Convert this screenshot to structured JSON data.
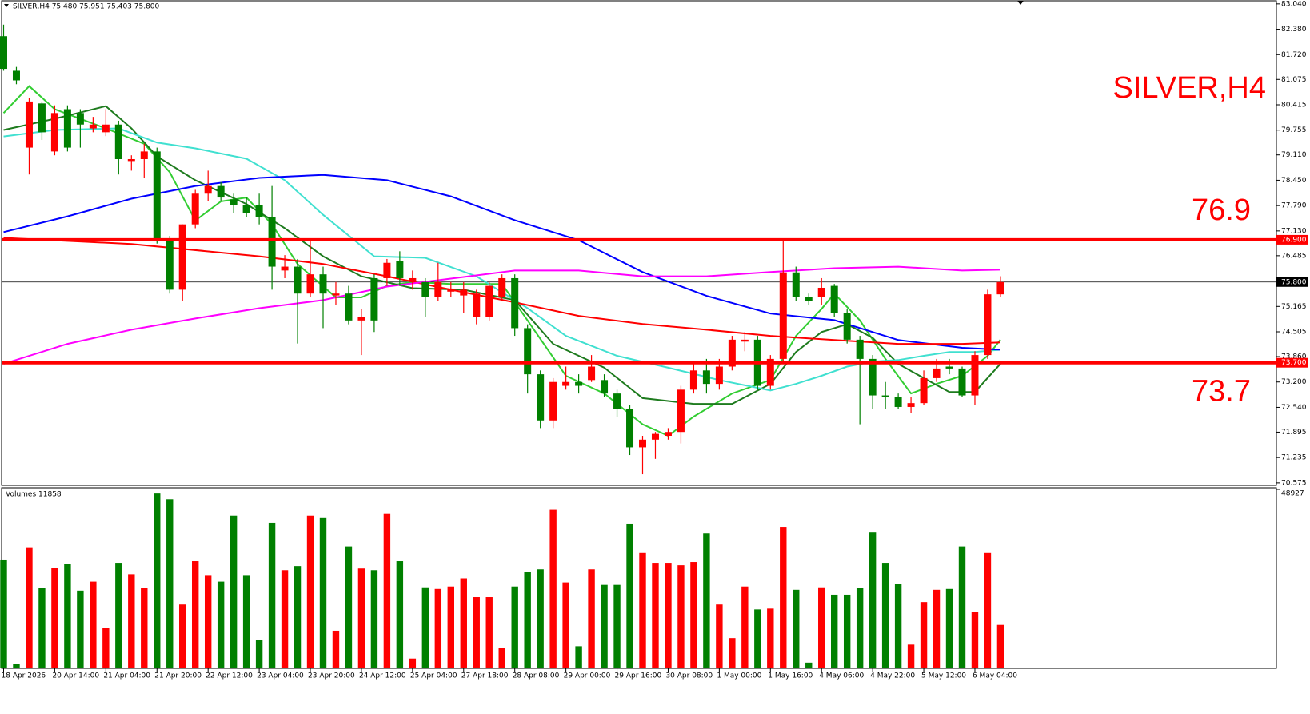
{
  "chart_data": {
    "type": "candlestick",
    "header": "SILVER,H4  75.480 75.951 75.403 75.800",
    "title": "SILVER,H4",
    "volume_label": "Volumes 11858",
    "up_color": "#ff0000",
    "down_color": "#008000",
    "ylim": [
      70.51,
      83.12
    ],
    "yticks": [
      {
        "value": 83.04,
        "label": "83.040"
      },
      {
        "value": 82.38,
        "label": "82.380"
      },
      {
        "value": 81.72,
        "label": "81.720"
      },
      {
        "value": 81.075,
        "label": "81.075"
      },
      {
        "value": 80.415,
        "label": "80.415"
      },
      {
        "value": 79.755,
        "label": "79.755"
      },
      {
        "value": 79.11,
        "label": "79.110"
      },
      {
        "value": 78.45,
        "label": "78.450"
      },
      {
        "value": 77.79,
        "label": "77.790"
      },
      {
        "value": 77.13,
        "label": "77.130"
      },
      {
        "value": 76.485,
        "label": "76.485"
      },
      {
        "value": 75.165,
        "label": "75.165"
      },
      {
        "value": 74.505,
        "label": "74.505"
      },
      {
        "value": 73.86,
        "label": "73.860"
      },
      {
        "value": 73.2,
        "label": "73.200"
      },
      {
        "value": 72.54,
        "label": "72.540"
      },
      {
        "value": 71.895,
        "label": "71.895"
      },
      {
        "value": 71.235,
        "label": "71.235"
      },
      {
        "value": 70.575,
        "label": "70.575"
      }
    ],
    "levels": [
      {
        "value": 76.9,
        "label": "76.900"
      },
      {
        "value": 73.7,
        "label": "73.700"
      }
    ],
    "level_color": "#ff0000",
    "current_price": {
      "value": 75.8,
      "label": "75.800"
    },
    "volume_ylim": [
      0,
      48927
    ],
    "volume_ticks": [
      48927
    ],
    "categories": [
      "18 Apr 2026",
      null,
      null,
      null,
      "20 Apr 14:00",
      null,
      null,
      null,
      "21 Apr 04:00",
      null,
      null,
      null,
      "21 Apr 20:00",
      null,
      null,
      null,
      "22 Apr 12:00",
      null,
      null,
      null,
      "23 Apr 04:00",
      null,
      null,
      null,
      "23 Apr 20:00",
      null,
      null,
      null,
      "24 Apr 12:00",
      null,
      null,
      null,
      "25 Apr 04:00",
      null,
      null,
      null,
      "27 Apr 18:00",
      null,
      null,
      null,
      "28 Apr 08:00",
      null,
      null,
      null,
      "29 Apr 00:00",
      null,
      null,
      null,
      "29 Apr 16:00",
      null,
      null,
      null,
      "30 Apr 08:00",
      null,
      null,
      null,
      "1 May 00:00",
      null,
      null,
      null,
      "1 May 16:00",
      null,
      null,
      null,
      "4 May 06:00",
      null,
      null,
      null,
      "4 May 22:00",
      null,
      null,
      null,
      "5 May 12:00",
      null,
      null,
      null,
      "6 May 04:00",
      null,
      null
    ],
    "open": [
      82.2,
      81.3,
      79.3,
      80.45,
      79.2,
      80.3,
      80.2,
      79.8,
      79.7,
      79.9,
      78.95,
      79.0,
      79.2,
      76.9,
      75.6,
      77.3,
      78.1,
      78.3,
      77.95,
      77.8,
      77.8,
      77.5,
      76.1,
      76.2,
      75.5,
      76.0,
      75.45,
      75.5,
      74.8,
      75.9,
      75.9,
      76.35,
      75.8,
      75.8,
      75.4,
      75.55,
      75.45,
      74.9,
      74.9,
      75.4,
      75.9,
      74.6,
      73.4,
      72.2,
      73.1,
      73.2,
      73.25,
      73.25,
      72.9,
      72.5,
      71.5,
      71.7,
      71.8,
      71.9,
      73.0,
      73.5,
      73.15,
      73.6,
      74.25,
      74.3,
      73.1,
      73.8,
      76.05,
      75.4,
      75.4,
      75.7,
      75.0,
      74.3,
      73.8,
      72.85,
      72.8,
      72.55,
      72.65,
      73.3,
      73.6,
      73.55,
      72.85,
      73.9,
      75.48
    ],
    "high": [
      82.5,
      81.4,
      80.6,
      80.5,
      80.4,
      80.4,
      80.3,
      80.1,
      80.3,
      80.0,
      79.1,
      79.4,
      79.3,
      77.0,
      77.3,
      78.2,
      78.7,
      78.4,
      78.1,
      78.0,
      78.1,
      78.3,
      76.5,
      76.4,
      76.9,
      76.2,
      75.8,
      75.7,
      75.1,
      76.0,
      76.4,
      76.6,
      76.1,
      75.9,
      76.3,
      75.8,
      75.8,
      75.6,
      75.8,
      76.0,
      76.0,
      74.7,
      73.5,
      73.3,
      73.6,
      73.4,
      73.9,
      73.4,
      73.0,
      72.6,
      71.8,
      71.9,
      72.0,
      73.1,
      73.7,
      73.8,
      73.8,
      74.4,
      74.5,
      74.4,
      73.9,
      76.9,
      76.2,
      75.5,
      75.9,
      75.75,
      75.1,
      74.4,
      73.9,
      73.2,
      72.9,
      72.8,
      73.5,
      73.8,
      73.8,
      73.6,
      74.0,
      75.6,
      75.951
    ],
    "low": [
      81.3,
      80.95,
      78.6,
      79.5,
      79.1,
      79.2,
      79.3,
      79.7,
      79.6,
      78.6,
      78.7,
      78.5,
      76.8,
      75.5,
      75.3,
      77.2,
      77.9,
      77.9,
      77.6,
      77.5,
      77.3,
      75.6,
      75.9,
      74.2,
      75.4,
      74.6,
      75.2,
      74.7,
      73.9,
      74.5,
      75.7,
      75.7,
      75.6,
      74.9,
      75.3,
      75.4,
      75.0,
      74.7,
      74.8,
      75.3,
      74.4,
      72.9,
      72.0,
      72.0,
      73.0,
      72.9,
      73.2,
      72.8,
      72.3,
      71.3,
      70.8,
      71.2,
      71.7,
      71.6,
      72.9,
      72.9,
      73.0,
      73.5,
      74.0,
      73.0,
      73.0,
      73.7,
      75.3,
      75.2,
      75.2,
      74.9,
      74.2,
      72.1,
      72.5,
      72.5,
      72.5,
      72.4,
      72.6,
      73.2,
      73.4,
      72.8,
      72.6,
      73.8,
      75.403
    ],
    "close": [
      81.35,
      81.05,
      80.5,
      79.7,
      80.2,
      79.3,
      79.9,
      79.9,
      79.9,
      79.0,
      79.0,
      79.2,
      76.9,
      75.6,
      77.3,
      78.1,
      78.3,
      78.0,
      77.8,
      77.6,
      77.5,
      76.2,
      76.2,
      75.5,
      76.0,
      75.5,
      75.5,
      74.8,
      74.9,
      74.8,
      76.3,
      75.9,
      75.9,
      75.4,
      75.8,
      75.6,
      75.6,
      75.5,
      75.7,
      75.9,
      74.6,
      73.4,
      72.2,
      73.2,
      73.2,
      73.1,
      73.6,
      72.9,
      72.5,
      71.5,
      71.7,
      71.85,
      71.9,
      73.0,
      73.5,
      73.15,
      73.6,
      74.3,
      74.3,
      73.1,
      73.8,
      76.05,
      75.4,
      75.3,
      75.65,
      75.0,
      74.3,
      73.8,
      72.85,
      72.8,
      72.55,
      72.65,
      73.3,
      73.55,
      73.55,
      72.85,
      73.9,
      75.48,
      75.8
    ],
    "volume": [
      29712,
      1117,
      33063,
      21893,
      27478,
      28595,
      21223,
      23680,
      10947,
      28819,
      25691,
      21893,
      47808,
      46244,
      17425,
      29265,
      25468,
      23680,
      41776,
      25468,
      7819,
      39765,
      26808,
      27925,
      41776,
      41106,
      10276,
      33287,
      27255,
      26808,
      42223,
      29265,
      2681,
      22117,
      21670,
      22340,
      24574,
      19436,
      19436,
      5585,
      22340,
      26361,
      27031,
      43340,
      23457,
      6032,
      27031,
      22787,
      22787,
      39542,
      31499,
      28819,
      28819,
      28148,
      29042,
      36861,
      17425,
      8266,
      22340,
      16085,
      16308,
      38648,
      21446,
      1564,
      22117,
      20106,
      20106,
      21893,
      37308,
      28819,
      23010,
      6479,
      18095,
      21446,
      21670,
      33287,
      15415,
      31499,
      11858
    ],
    "ma_lines": [
      {
        "color": "#32cd32",
        "x": [
          0,
          2,
          4,
          8,
          11,
          13,
          15,
          17,
          19,
          21,
          23,
          26,
          28,
          30,
          32,
          35,
          39,
          41,
          44,
          47,
          50,
          52,
          54,
          57,
          60,
          62,
          64,
          65,
          67,
          69,
          71,
          73,
          75,
          77,
          78
        ],
        "values": [
          80.2,
          80.9,
          80.3,
          79.8,
          79.4,
          78.66,
          77.4,
          77.9,
          78.0,
          77.3,
          76.27,
          75.4,
          75.4,
          75.7,
          75.8,
          75.75,
          75.75,
          74.8,
          73.36,
          72.9,
          72.1,
          71.8,
          72.3,
          72.9,
          73.25,
          74.4,
          75.1,
          75.5,
          74.8,
          73.8,
          72.9,
          73.15,
          73.36,
          73.88,
          74.3
        ]
      },
      {
        "color": "#1e7b1e",
        "x": [
          0,
          4,
          8,
          10,
          12,
          15,
          19,
          22,
          25,
          28,
          32,
          36,
          40,
          43,
          47,
          50,
          54,
          57,
          60,
          62,
          64,
          66,
          68,
          70,
          72,
          74,
          76,
          78
        ],
        "values": [
          79.76,
          80.05,
          80.38,
          79.8,
          79.07,
          78.45,
          77.83,
          77.2,
          76.47,
          75.95,
          75.64,
          75.6,
          75.33,
          74.19,
          73.57,
          72.78,
          72.63,
          72.63,
          73.15,
          73.98,
          74.5,
          74.7,
          74.35,
          73.67,
          73.3,
          72.94,
          72.94,
          73.67
        ]
      },
      {
        "color": "#40e0d0",
        "x": [
          0,
          4,
          9,
          12,
          15,
          19,
          22,
          25,
          29,
          33,
          37,
          41,
          44,
          48,
          52,
          56,
          60,
          62,
          64,
          66,
          68,
          70,
          72,
          74,
          76,
          78
        ],
        "values": [
          79.59,
          79.76,
          79.8,
          79.43,
          79.28,
          79.01,
          78.45,
          77.55,
          76.47,
          76.43,
          75.95,
          75.12,
          74.4,
          73.88,
          73.57,
          73.25,
          72.98,
          73.15,
          73.36,
          73.6,
          73.73,
          73.77,
          73.88,
          73.98,
          73.98,
          74.04
        ]
      },
      {
        "color": "#0000ff",
        "x": [
          0,
          5,
          10,
          15,
          20,
          25,
          30,
          35,
          40,
          45,
          50,
          55,
          60,
          65,
          70,
          75,
          78
        ],
        "values": [
          77.1,
          77.51,
          77.97,
          78.3,
          78.51,
          78.59,
          78.45,
          78.03,
          77.41,
          76.89,
          76.06,
          75.44,
          74.98,
          74.81,
          74.29,
          74.09,
          74.04
        ]
      },
      {
        "color": "#ff0000",
        "x": [
          0,
          10,
          20,
          25,
          30,
          35,
          40,
          45,
          50,
          55,
          60,
          65,
          70,
          75,
          78
        ],
        "values": [
          76.95,
          76.79,
          76.47,
          76.27,
          75.95,
          75.6,
          75.27,
          74.92,
          74.71,
          74.56,
          74.4,
          74.29,
          74.19,
          74.19,
          74.23
        ]
      },
      {
        "color": "#ff00ff",
        "x": [
          0,
          5,
          10,
          15,
          20,
          25,
          30,
          35,
          40,
          45,
          50,
          55,
          60,
          65,
          70,
          75,
          78
        ],
        "values": [
          73.67,
          74.19,
          74.56,
          74.85,
          75.12,
          75.33,
          75.68,
          75.89,
          76.1,
          76.1,
          75.95,
          75.95,
          76.06,
          76.16,
          76.2,
          76.1,
          76.12
        ]
      }
    ]
  }
}
